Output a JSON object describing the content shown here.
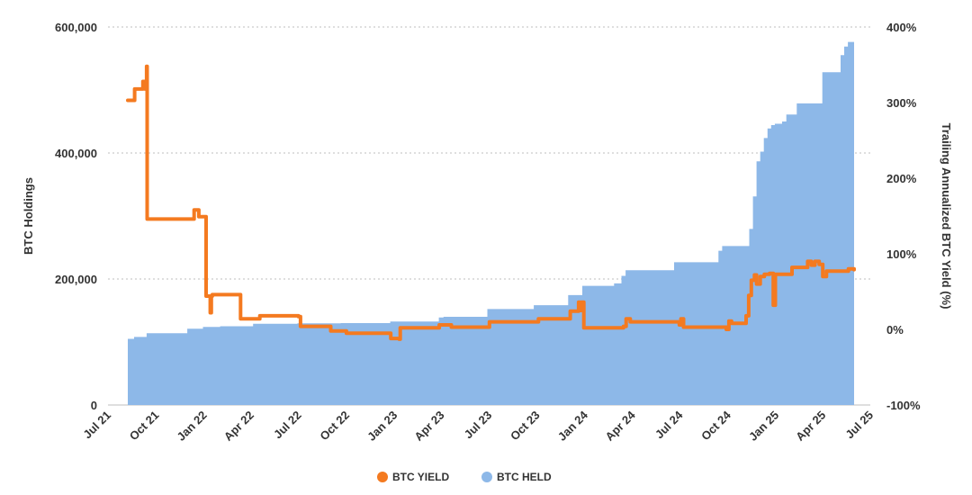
{
  "chart_data": {
    "type": "line",
    "colors": {
      "yield": "#f47a20",
      "held": "#8db8e8",
      "grid": "#bfbfbf"
    },
    "x_ticks": [
      "Jul 21",
      "Oct 21",
      "Jan 22",
      "Apr 22",
      "Jul 22",
      "Oct 22",
      "Jan 23",
      "Apr 23",
      "Jul 23",
      "Oct 23",
      "Jan 24",
      "Apr 24",
      "Jul 24",
      "Oct 24",
      "Jan 25",
      "Apr 25",
      "Jul 25"
    ],
    "ylabel_left": "BTC Holdings",
    "ylabel_right": "Trailing Annualized BTC Yield (%)",
    "ylim_left": [
      0,
      600000
    ],
    "ylim_right": [
      -100,
      400
    ],
    "y_ticks_left": [
      "0",
      "200,000",
      "400,000",
      "600,000"
    ],
    "y_ticks_right": [
      "-100%",
      "0%",
      "100%",
      "200%",
      "300%",
      "400%"
    ],
    "legend": [
      {
        "label": "BTC YIELD",
        "color": "#f47a20"
      },
      {
        "label": "BTC HELD",
        "color": "#8db8e8"
      }
    ],
    "series": [
      {
        "name": "BTC HELD",
        "type": "area",
        "axis": "left",
        "points": [
          [
            "2021-08-08",
            105000
          ],
          [
            "2021-08-20",
            108000
          ],
          [
            "2021-09-13",
            114000
          ],
          [
            "2021-11-29",
            114000
          ],
          [
            "2021-11-30",
            121000
          ],
          [
            "2021-12-30",
            124000
          ],
          [
            "2022-02-01",
            125000
          ],
          [
            "2022-04-05",
            129000
          ],
          [
            "2022-06-29",
            129700
          ],
          [
            "2022-09-20",
            130000
          ],
          [
            "2022-12-24",
            132500
          ],
          [
            "2023-03-27",
            138900
          ],
          [
            "2023-04-05",
            140000
          ],
          [
            "2023-06-28",
            152300
          ],
          [
            "2023-09-25",
            158400
          ],
          [
            "2023-11-30",
            174500
          ],
          [
            "2023-12-27",
            189150
          ],
          [
            "2024-02-26",
            193000
          ],
          [
            "2024-03-11",
            205000
          ],
          [
            "2024-03-19",
            214000
          ],
          [
            "2024-06-20",
            226500
          ],
          [
            "2024-09-13",
            244800
          ],
          [
            "2024-09-20",
            252220
          ],
          [
            "2024-11-11",
            279420
          ],
          [
            "2024-11-18",
            331200
          ],
          [
            "2024-11-25",
            386700
          ],
          [
            "2024-12-02",
            402100
          ],
          [
            "2024-12-09",
            423650
          ],
          [
            "2024-12-16",
            439000
          ],
          [
            "2024-12-23",
            444262
          ],
          [
            "2024-12-30",
            446400
          ],
          [
            "2025-01-13",
            450000
          ],
          [
            "2025-01-21",
            461000
          ],
          [
            "2025-02-10",
            478740
          ],
          [
            "2025-03-31",
            528185
          ],
          [
            "2025-05-05",
            555450
          ],
          [
            "2025-05-12",
            568840
          ],
          [
            "2025-05-19",
            576230
          ],
          [
            "2025-05-31",
            580250
          ]
        ]
      },
      {
        "name": "BTC YIELD",
        "type": "line",
        "axis": "right",
        "points": [
          [
            "2021-08-08",
            303
          ],
          [
            "2021-08-20",
            303
          ],
          [
            "2021-08-21",
            318
          ],
          [
            "2021-09-05",
            318
          ],
          [
            "2021-09-06",
            328
          ],
          [
            "2021-09-10",
            318
          ],
          [
            "2021-09-13",
            348
          ],
          [
            "2021-09-14",
            146
          ],
          [
            "2021-12-10",
            146
          ],
          [
            "2021-12-13",
            158
          ],
          [
            "2021-12-20",
            158
          ],
          [
            "2021-12-22",
            149
          ],
          [
            "2022-01-03",
            149
          ],
          [
            "2022-01-05",
            44
          ],
          [
            "2022-01-12",
            44
          ],
          [
            "2022-01-13",
            22
          ],
          [
            "2022-01-15",
            44
          ],
          [
            "2022-01-17",
            46
          ],
          [
            "2022-03-10",
            46
          ],
          [
            "2022-03-12",
            14
          ],
          [
            "2022-04-15",
            14
          ],
          [
            "2022-04-18",
            18
          ],
          [
            "2022-07-01",
            17
          ],
          [
            "2022-07-05",
            4
          ],
          [
            "2022-08-25",
            4
          ],
          [
            "2022-09-01",
            -2
          ],
          [
            "2022-10-01",
            -5
          ],
          [
            "2022-12-22",
            -5
          ],
          [
            "2022-12-25",
            -12
          ],
          [
            "2023-01-10",
            -13
          ],
          [
            "2023-01-12",
            2
          ],
          [
            "2023-03-25",
            2
          ],
          [
            "2023-03-28",
            6
          ],
          [
            "2023-04-18",
            6
          ],
          [
            "2023-04-20",
            3
          ],
          [
            "2023-06-30",
            3
          ],
          [
            "2023-07-02",
            10
          ],
          [
            "2023-10-01",
            10
          ],
          [
            "2023-10-04",
            14
          ],
          [
            "2023-12-01",
            14
          ],
          [
            "2023-12-04",
            24
          ],
          [
            "2023-12-20",
            36
          ],
          [
            "2023-12-22",
            25
          ],
          [
            "2023-12-25",
            36
          ],
          [
            "2023-12-30",
            2
          ],
          [
            "2024-03-15",
            4
          ],
          [
            "2024-03-20",
            14
          ],
          [
            "2024-03-28",
            10
          ],
          [
            "2024-06-30",
            6
          ],
          [
            "2024-07-03",
            14
          ],
          [
            "2024-07-08",
            3
          ],
          [
            "2024-09-28",
            0
          ],
          [
            "2024-10-03",
            11
          ],
          [
            "2024-10-08",
            8
          ],
          [
            "2024-10-30",
            8
          ],
          [
            "2024-11-05",
            18
          ],
          [
            "2024-11-10",
            45
          ],
          [
            "2024-11-15",
            65
          ],
          [
            "2024-11-21",
            72
          ],
          [
            "2024-11-25",
            60
          ],
          [
            "2024-12-02",
            70
          ],
          [
            "2024-12-10",
            73
          ],
          [
            "2024-12-20",
            74
          ],
          [
            "2024-12-27",
            32
          ],
          [
            "2024-12-31",
            73
          ],
          [
            "2025-01-25",
            73
          ],
          [
            "2025-02-01",
            82
          ],
          [
            "2025-02-28",
            82
          ],
          [
            "2025-03-03",
            90
          ],
          [
            "2025-03-10",
            85
          ],
          [
            "2025-03-17",
            90
          ],
          [
            "2025-03-25",
            86
          ],
          [
            "2025-04-01",
            70
          ],
          [
            "2025-04-08",
            77
          ],
          [
            "2025-05-10",
            77
          ],
          [
            "2025-05-20",
            80
          ],
          [
            "2025-05-31",
            79
          ]
        ]
      }
    ]
  }
}
